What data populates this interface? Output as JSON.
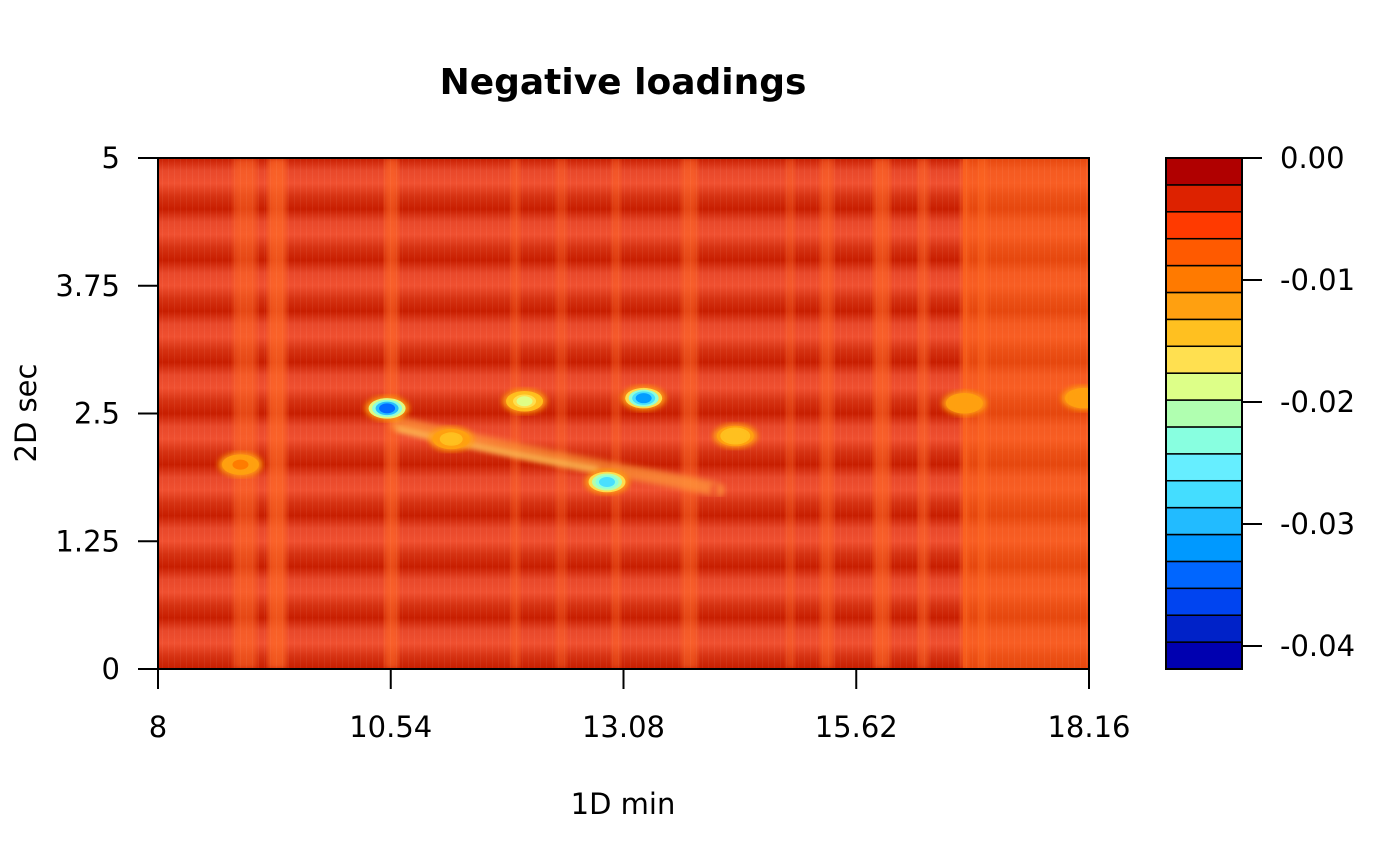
{
  "chart_data": {
    "type": "heatmap",
    "subtype": "filled-contour",
    "title": "Negative loadings",
    "xlabel": "1D min",
    "ylabel": "2D sec",
    "xlim": [
      8,
      18.16
    ],
    "ylim": [
      0,
      5
    ],
    "x_ticks": [
      "8",
      "10.54",
      "13.08",
      "15.62",
      "18.16"
    ],
    "y_ticks": [
      "0",
      "1.25",
      "2.5",
      "3.75",
      "5"
    ],
    "colorbar": {
      "ticks": [
        "0.00",
        "-0.01",
        "-0.02",
        "-0.03",
        "-0.04"
      ],
      "range": [
        -0.042,
        0.0
      ],
      "levels_colors": [
        "#0000B0",
        "#0022C8",
        "#0044F0",
        "#0066FF",
        "#0099FF",
        "#22BBFF",
        "#44DDFF",
        "#66EEFF",
        "#88FFE0",
        "#B0FFB0",
        "#DDFF88",
        "#FFE050",
        "#FFC020",
        "#FFA010",
        "#FF7A00",
        "#FF5A00",
        "#FF3A00",
        "#DD2200",
        "#B00000"
      ]
    },
    "features": [
      {
        "x": 10.5,
        "y": 2.55,
        "value": -0.035
      },
      {
        "x": 13.3,
        "y": 2.65,
        "value": -0.033
      },
      {
        "x": 12.9,
        "y": 1.83,
        "value": -0.028
      },
      {
        "x": 12.0,
        "y": 2.62,
        "value": -0.018
      },
      {
        "x": 14.3,
        "y": 2.28,
        "value": -0.015
      },
      {
        "x": 11.2,
        "y": 2.25,
        "value": -0.014
      },
      {
        "x": 18.1,
        "y": 2.65,
        "value": -0.012
      },
      {
        "x": 16.8,
        "y": 2.6,
        "value": -0.012
      },
      {
        "x": 8.9,
        "y": 2.0,
        "value": -0.011
      }
    ]
  }
}
